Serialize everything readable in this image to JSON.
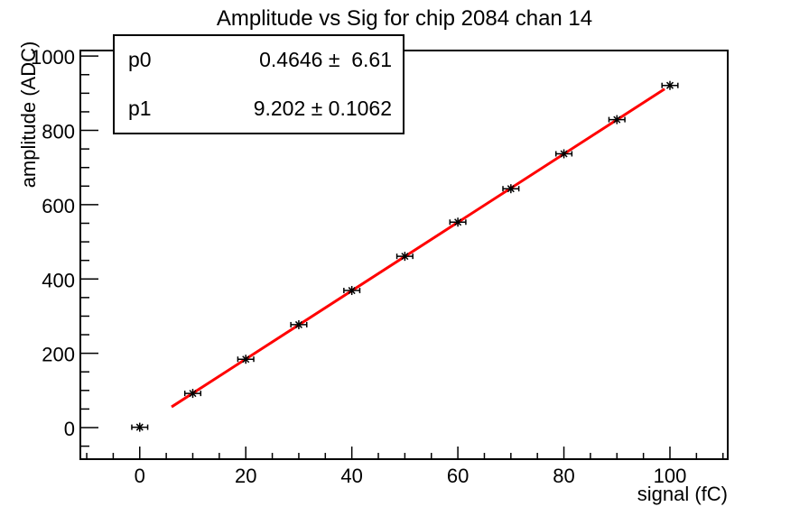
{
  "title": "Amplitude vs Sig for chip 2084 chan 14",
  "stats_box": {
    "rows": [
      {
        "name": "p0",
        "value": "0.4646 ±  6.61"
      },
      {
        "name": "p1",
        "value": "9.202 ± 0.1062"
      }
    ]
  },
  "chart_data": {
    "type": "scatter",
    "title": "Amplitude vs Sig for chip 2084 chan 14",
    "xlabel": "signal (fC)",
    "ylabel": "amplitude (ADC)",
    "x": [
      0,
      10,
      20,
      30,
      40,
      50,
      60,
      70,
      80,
      90,
      100
    ],
    "y": [
      1,
      92,
      184,
      277,
      369,
      461,
      553,
      643,
      737,
      829,
      921
    ],
    "x_error": 1.5,
    "xlim": [
      -11.2,
      110.9
    ],
    "ylim": [
      -85,
      1015
    ],
    "x_major_ticks": [
      0,
      20,
      40,
      60,
      80,
      100
    ],
    "x_minor_step": 5,
    "y_major_ticks": [
      0,
      200,
      400,
      600,
      800,
      1000
    ],
    "y_minor_step": 50,
    "grid": false,
    "legend_position": "stats box, top-left",
    "fit": {
      "type": "linear",
      "p0": 0.4646,
      "p0_error": 6.61,
      "p1": 9.202,
      "p1_error": 0.1062,
      "draw_range": [
        6,
        99
      ],
      "color": "#ff0000"
    },
    "marker": {
      "style": "asterisk-with-x-error-bars",
      "color": "#000000"
    },
    "frame_color": "#000000",
    "background_color": "#ffffff"
  }
}
